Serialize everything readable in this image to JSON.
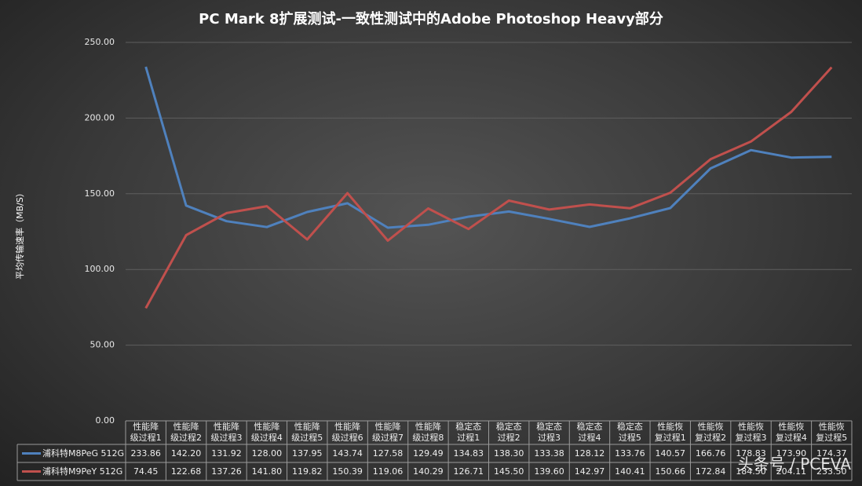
{
  "chart_data": {
    "type": "line",
    "title": "PC Mark 8扩展测试-一致性测试中的Adobe Photoshop Heavy部分",
    "y_label": "平均传输速率（MB/S）",
    "categories": [
      "性能降级过程1",
      "性能降级过程2",
      "性能降级过程3",
      "性能降级过程4",
      "性能降级过程5",
      "性能降级过程6",
      "性能降级过程7",
      "性能降级过程8",
      "稳定态过程1",
      "稳定态过程2",
      "稳定态过程3",
      "稳定态过程4",
      "稳定态过程5",
      "性能恢复过程1",
      "性能恢复过程2",
      "性能恢复过程3",
      "性能恢复过程4",
      "性能恢复过程5"
    ],
    "series": [
      {
        "name": "浦科特M8PeG 512G",
        "color": "#4f81bd",
        "values": [
          233.86,
          142.2,
          131.92,
          128,
          137.95,
          143.74,
          127.58,
          129.49,
          134.83,
          138.3,
          133.38,
          128.12,
          133.76,
          140.57,
          166.76,
          178.83,
          173.9,
          174.37
        ],
        "value_labels": [
          "233.86",
          "142.20",
          "131.92",
          "128.00",
          "137.95",
          "143.74",
          "127.58",
          "129.49",
          "134.83",
          "138.30",
          "133.38",
          "128.12",
          "133.76",
          "140.57",
          "166.76",
          "178.83",
          "173.90",
          "174.37"
        ]
      },
      {
        "name": "浦科特M9PeY 512G",
        "color": "#c0504d",
        "values": [
          74.45,
          122.68,
          137.26,
          141.8,
          119.82,
          150.39,
          119.06,
          140.29,
          126.71,
          145.5,
          139.6,
          142.97,
          140.41,
          150.66,
          172.84,
          184.5,
          204.11,
          233.5
        ],
        "value_labels": [
          "74.45",
          "122.68",
          "137.26",
          "141.80",
          "119.82",
          "150.39",
          "119.06",
          "140.29",
          "126.71",
          "145.50",
          "139.60",
          "142.97",
          "140.41",
          "150.66",
          "172.84",
          "184.50",
          "204.11",
          "233.50"
        ]
      }
    ],
    "ylim": [
      0,
      250
    ],
    "yticks": [
      {
        "value": 0,
        "label": "0.00"
      },
      {
        "value": 50,
        "label": "50.00"
      },
      {
        "value": 100,
        "label": "100.00"
      },
      {
        "value": 150,
        "label": "150.00"
      },
      {
        "value": 200,
        "label": "200.00"
      },
      {
        "value": 250,
        "label": "250.00"
      }
    ],
    "grid": true,
    "watermark": "头条号 / PCEVA"
  }
}
